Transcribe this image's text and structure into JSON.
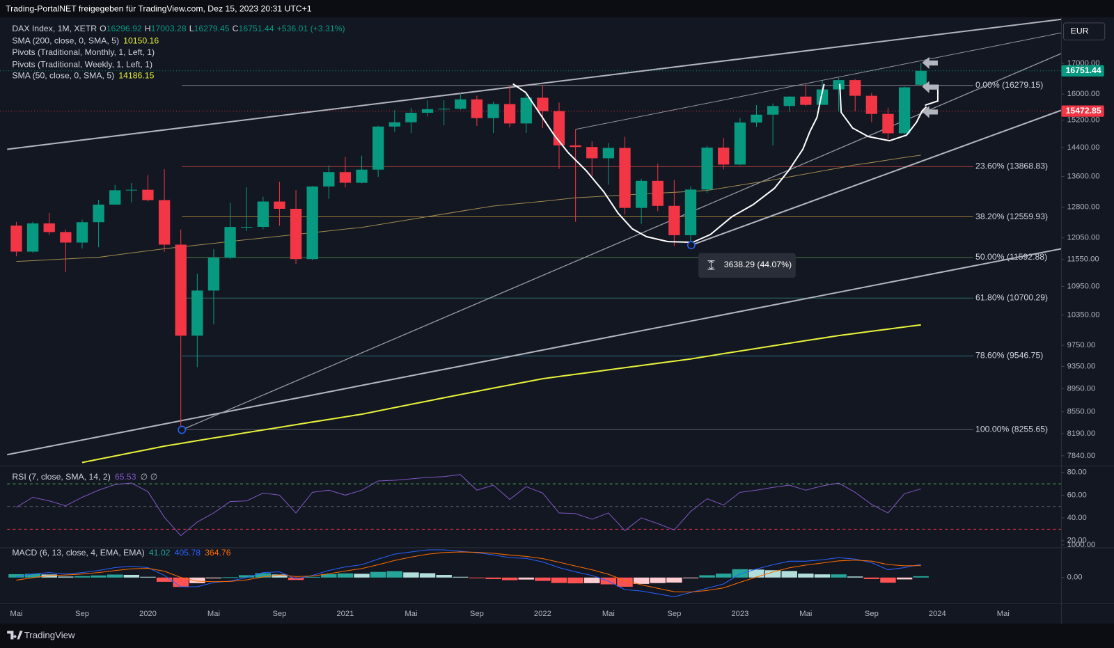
{
  "header": {
    "title": "Trading-PortalNET freigegeben für TradingView.com, Dez 15, 2023 20:31 UTC+1",
    "currency": "EUR",
    "brand": "TradingView"
  },
  "chart_data": [
    {
      "type": "candlestick",
      "symbol": "DAX Index, 1M, XETR",
      "ohlc_prefixes": [
        "O",
        "H",
        "L",
        "C"
      ],
      "change_label": "+536.01 (+3.31%)",
      "categories": [
        "Mai",
        null,
        null,
        null,
        "Sep",
        null,
        null,
        null,
        "2020",
        null,
        null,
        null,
        "Mai",
        null,
        null,
        null,
        "Sep",
        null,
        null,
        null,
        "2021",
        null,
        null,
        null,
        "Mai",
        null,
        null,
        null,
        "Sep",
        null,
        null,
        null,
        "2022",
        null,
        null,
        null,
        "Mai",
        null,
        null,
        null,
        "Sep",
        null,
        null,
        null,
        "2023",
        null,
        null,
        null,
        "Mai",
        null,
        null,
        null,
        "Sep",
        null,
        null,
        null,
        "2024",
        null,
        null,
        null,
        "Mai",
        null
      ],
      "open": [
        12345,
        11727,
        12399,
        12189,
        11939,
        12428,
        12867,
        13236,
        13249,
        12982,
        11890,
        9936,
        10861,
        11587,
        12311,
        12313,
        12945,
        12761,
        11556,
        13335,
        13719,
        13433,
        13786,
        15008,
        15136,
        15421,
        15531,
        15544,
        15835,
        15260,
        15689,
        15100,
        15885,
        15471,
        14461,
        14415,
        14098,
        14388,
        12784,
        13484,
        12835,
        12114,
        13254,
        14397,
        13924,
        15128,
        15365,
        15629,
        15922,
        15664,
        16148,
        16447,
        15947,
        15387,
        14810,
        16296.92,
        null,
        null,
        null,
        null,
        null,
        null
      ],
      "high": [
        12435,
        12440,
        12656,
        12250,
        12494,
        12988,
        13374,
        13425,
        13640,
        13795,
        12250,
        11226,
        11781,
        12913,
        13314,
        13070,
        13460,
        13241,
        13345,
        13903,
        14131,
        14169,
        15030,
        15502,
        15568,
        15803,
        15810,
        16030,
        15951,
        15761,
        16290,
        16000,
        16285,
        15736,
        14925,
        14580,
        14525,
        14710,
        13541,
        13947,
        13501,
        13336,
        14446,
        14676,
        15270,
        15658,
        15706,
        15935,
        16331,
        16427,
        16528,
        16484,
        16043,
        15575,
        16240,
        17003.28,
        null,
        null,
        null,
        null,
        null,
        null
      ],
      "low": [
        11620,
        11700,
        12120,
        11266,
        11800,
        11830,
        12860,
        12925,
        12948,
        11724,
        8255.65,
        9339,
        10160,
        11557,
        12213,
        12254,
        12342,
        11450,
        11530,
        13014,
        13310,
        13420,
        13586,
        14855,
        14816,
        15310,
        15047,
        15510,
        15025,
        14819,
        14986,
        14821,
        14960,
        13807,
        12439,
        13616,
        13381,
        12618,
        12390,
        12697,
        11862,
        11869,
        13163,
        13791,
        13908,
        15000,
        14458,
        15454,
        15629,
        15706,
        15455,
        15469,
        15139,
        14630,
        14780,
        16279.45,
        null,
        null,
        null,
        null,
        null,
        null
      ],
      "close": [
        11727,
        12399,
        12189,
        11939,
        12428,
        12867,
        13236,
        13249,
        12982,
        11890,
        9936,
        10861,
        11587,
        12311,
        12313,
        12945,
        12761,
        11556,
        13335,
        13719,
        13433,
        13786,
        15008,
        15136,
        15421,
        15531,
        15544,
        15835,
        15260,
        15689,
        15100,
        15885,
        15471,
        14461,
        14415,
        14098,
        14388,
        12784,
        13484,
        12835,
        12114,
        13254,
        14397,
        13924,
        15128,
        15365,
        15629,
        15922,
        15664,
        16148,
        16447,
        15947,
        15387,
        14810,
        16215,
        16751.44,
        null,
        null,
        null,
        null,
        null,
        null
      ],
      "up_color": "#089981",
      "down_color": "#f23645",
      "log_scale": true,
      "ylim": [
        7694,
        18517
      ],
      "yticks": [
        {
          "value": 17000,
          "label": "17000.00"
        },
        {
          "value": 16000,
          "label": "16000.00"
        },
        {
          "value": 15200,
          "label": "15200.00"
        },
        {
          "value": 14400,
          "label": "14400.00"
        },
        {
          "value": 13600,
          "label": "13600.00"
        },
        {
          "value": 12800,
          "label": "12800.00"
        },
        {
          "value": 12050,
          "label": "12050.00"
        },
        {
          "value": 11550,
          "label": "11550.00"
        },
        {
          "value": 10950,
          "label": "10950.00"
        },
        {
          "value": 10350,
          "label": "10350.00"
        },
        {
          "value": 9750,
          "label": "9750.00"
        },
        {
          "value": 9350,
          "label": "9350.00"
        },
        {
          "value": 8950,
          "label": "8950.00"
        },
        {
          "value": 8550,
          "label": "8550.00"
        },
        {
          "value": 8190,
          "label": "8190.00"
        },
        {
          "value": 7840,
          "label": "7840.00"
        }
      ],
      "overlays": [
        {
          "name": "SMA (200, close, 0, SMA, 5)",
          "color": "#e8f23a",
          "values": [
            null,
            null,
            null,
            null,
            7737,
            7787,
            7838,
            7888,
            7939,
            7990,
            8033,
            8077,
            8120,
            8163,
            8207,
            8250,
            8293,
            8337,
            8380,
            8423,
            8467,
            8510,
            8566,
            8622,
            8678,
            8734,
            8790,
            8847,
            8903,
            8959,
            9015,
            9071,
            9127,
            9167,
            9208,
            9248,
            9288,
            9328,
            9369,
            9409,
            9449,
            9490,
            9540,
            9590,
            9639,
            9689,
            9739,
            9789,
            9839,
            9888,
            9938,
            9980,
            10023,
            10065,
            10108,
            10150.16,
            null,
            null,
            null,
            null,
            null,
            null
          ]
        },
        {
          "name": "SMA (50, close, 0, SMA, 5)",
          "color": "#a08a4f",
          "values": [
            11502,
            11520,
            11540,
            11560,
            11580,
            11597,
            11647,
            11697,
            11746,
            11795,
            11837,
            11879,
            11921,
            11964,
            12006,
            12048,
            12090,
            12133,
            12175,
            12217,
            12259,
            12301,
            12367,
            12433,
            12499,
            12565,
            12631,
            12698,
            12764,
            12830,
            12870,
            12910,
            12950,
            12995,
            13040,
            13064,
            13088,
            13112,
            13136,
            13160,
            13183,
            13207,
            13231,
            13300,
            13370,
            13440,
            13510,
            13590,
            13670,
            13750,
            13830,
            13915,
            13980,
            14050,
            14120,
            14186.15,
            null,
            null,
            null,
            null,
            null,
            null
          ]
        }
      ],
      "pivots": [
        "Pivots (Traditional, Monthly, 1, Left, 1)",
        "Pivots (Traditional, Weekly, 1, Left, 1)"
      ],
      "fib_levels": [
        {
          "value": 16279.15,
          "label": "0.00% (16279.15)",
          "color": "#787b86"
        },
        {
          "value": 13868.83,
          "label": "23.60% (13868.83)",
          "color": "#9c3a3a"
        },
        {
          "value": 12559.93,
          "label": "38.20% (12559.93)",
          "color": "#a07a35"
        },
        {
          "value": 11592.88,
          "label": "50.00% (11592.88)",
          "color": "#4a7a45"
        },
        {
          "value": 10700.29,
          "label": "61.80% (10700.29)",
          "color": "#2e7060"
        },
        {
          "value": 9546.75,
          "label": "78.60% (9546.75)",
          "color": "#2e6c80"
        },
        {
          "value": 8255.65,
          "label": "100.00% (8255.65)",
          "color": "#5d606b"
        }
      ],
      "price_lines": [
        {
          "value": 16751.44,
          "color": "#089981"
        },
        {
          "value": 15472.85,
          "color": "#f23645"
        }
      ],
      "measurement": "3638.29 (44.07%)"
    },
    {
      "type": "line",
      "title": "RSI (7, close, SMA, 14, 2)",
      "extra_label": "∅ ∅",
      "series": [
        {
          "color": "#7e57c2",
          "values": [
            49.4,
            58.1,
            55,
            50.6,
            58.1,
            64.4,
            69.4,
            70.6,
            63.1,
            40.6,
            24.4,
            36.3,
            44.4,
            54.4,
            55,
            61.9,
            60,
            44.4,
            62.5,
            64.4,
            60,
            64.4,
            72.5,
            73.1,
            74.4,
            75.6,
            76.3,
            78.1,
            64.4,
            68.8,
            56.3,
            67.5,
            61.9,
            44.4,
            43.8,
            38.8,
            44.4,
            28.8,
            40,
            35,
            29.4,
            45.6,
            56.9,
            51.3,
            62.5,
            64.4,
            66.9,
            68.8,
            64.4,
            68.1,
            70.6,
            62.5,
            51.9,
            44.4,
            61.3,
            65.53,
            null,
            null,
            null,
            null,
            null,
            null
          ]
        }
      ],
      "ylim": [
        13.75,
        85
      ],
      "yticks": [
        {
          "value": 80,
          "label": "80.00"
        },
        {
          "value": 60,
          "label": "60.00"
        },
        {
          "value": 40,
          "label": "40.00"
        },
        {
          "value": 20,
          "label": "20.00"
        }
      ],
      "levels": [
        {
          "value": 70,
          "color": "#4caf50"
        },
        {
          "value": 50,
          "color": "#5d606b"
        },
        {
          "value": 30,
          "color": "#f23645"
        }
      ]
    },
    {
      "type": "macd",
      "title": "MACD (6, 13, close, 4, EMA, EMA)",
      "series": [
        {
          "color": "#26a69a",
          "colors": [
            "#26a69a",
            "#b2dfdb",
            "#ff5252",
            "#ffcdd2"
          ],
          "values": [
            103,
            114,
            94,
            31,
            44,
            65,
            91,
            81,
            22,
            -130,
            -287,
            -172,
            -25,
            11,
            72,
            134,
            94,
            -74,
            20,
            103,
            127,
            115,
            173,
            195,
            157,
            133,
            80,
            22,
            -13,
            -47,
            -80,
            -61,
            -102,
            -166,
            -178,
            -172,
            -208,
            -281,
            -194,
            -169,
            -154,
            -14,
            70,
            120,
            255,
            244,
            224,
            200,
            120,
            98,
            98,
            32,
            -46,
            -158,
            -56,
            41.02,
            null,
            null,
            null,
            null,
            null,
            null
          ]
        },
        {
          "color": "#2962ff",
          "values": [
            22,
            109,
            152,
            109,
            152,
            217,
            304,
            348,
            304,
            65,
            -283,
            -283,
            -152,
            -109,
            0,
            152,
            174,
            -43,
            65,
            217,
            326,
            391,
            565,
            717,
            783,
            848,
            848,
            804,
            761,
            696,
            609,
            587,
            478,
            304,
            174,
            65,
            -109,
            -370,
            -413,
            -500,
            -587,
            -457,
            -326,
            -196,
            109,
            261,
            391,
            500,
            500,
            543,
            609,
            565,
            457,
            239,
            304,
            405.78,
            null,
            null,
            null,
            null,
            null,
            null
          ]
        },
        {
          "color": "#ff6d00",
          "values": [
            -81,
            -5,
            58,
            78,
            108,
            152,
            213,
            267,
            282,
            195,
            4,
            -111,
            -127,
            -120,
            -72,
            18,
            80,
            31,
            45,
            114,
            199,
            276,
            392,
            522,
            626,
            715,
            768,
            782,
            774,
            743,
            689,
            648,
            580,
            470,
            352,
            237,
            99,
            -89,
            -219,
            -331,
            -433,
            -443,
            -396,
            -316,
            -146,
            17,
            167,
            300,
            380,
            445,
            511,
            533,
            503,
            397,
            360,
            364.76,
            null,
            null,
            null,
            null,
            null,
            null
          ]
        }
      ],
      "ylim": [
        -826,
        1043
      ],
      "yticks": [
        {
          "value": 1000,
          "label": "1000.00"
        },
        {
          "value": 0,
          "label": "0.00"
        }
      ]
    }
  ]
}
